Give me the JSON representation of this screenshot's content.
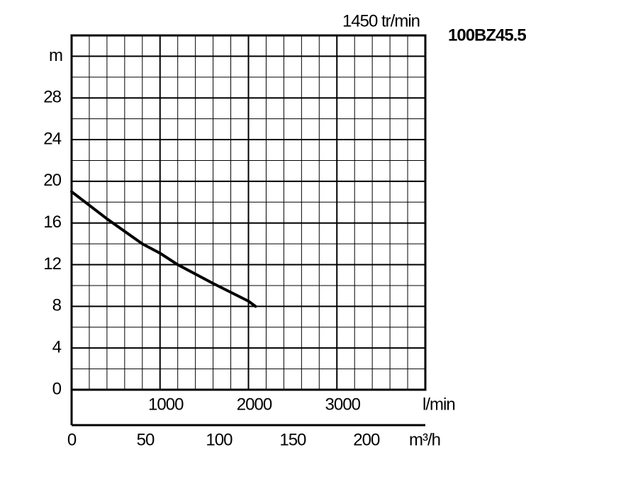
{
  "chart_data": {
    "type": "line",
    "title": "100BZ45.5",
    "subtitle": "1450 tr/min",
    "y_label": "m",
    "x_label": "l/min",
    "x2_label": "m³/h",
    "x": [
      0,
      400,
      800,
      1000,
      1200,
      1600,
      2000,
      2080
    ],
    "series": [
      {
        "color": "#000000",
        "values": [
          19,
          16.4,
          14,
          13.1,
          12,
          10.2,
          8.5,
          8
        ]
      }
    ],
    "xlim": [
      0,
      4000
    ],
    "xticks": [
      1000,
      2000,
      3000
    ],
    "x_grid": [
      0,
      200,
      400,
      600,
      800,
      1000,
      1200,
      1400,
      1600,
      1800,
      2000,
      2200,
      2400,
      2600,
      2800,
      3000,
      3200,
      3400,
      3600,
      3800,
      4000
    ],
    "ylim": [
      0,
      34
    ],
    "yticks": [
      0,
      4,
      8,
      12,
      16,
      20,
      24,
      28
    ],
    "y_grid": [
      0,
      2,
      4,
      6,
      8,
      10,
      12,
      14,
      16,
      18,
      20,
      22,
      24,
      26,
      28,
      30,
      32,
      34
    ],
    "x2lim": [
      0,
      240
    ],
    "x2ticks": [
      0,
      50,
      100,
      150,
      200
    ],
    "grid": true
  }
}
